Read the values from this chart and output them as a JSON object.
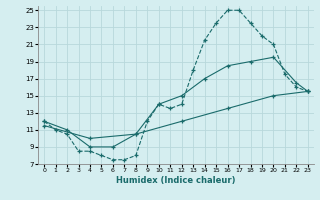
{
  "xlabel": "Humidex (Indice chaleur)",
  "bg_color": "#d5eef0",
  "grid_color": "#b8d8db",
  "line_color": "#1a6b6b",
  "xlim": [
    -0.5,
    23.5
  ],
  "ylim": [
    7,
    25.5
  ],
  "xticks": [
    0,
    1,
    2,
    3,
    4,
    5,
    6,
    7,
    8,
    9,
    10,
    11,
    12,
    13,
    14,
    15,
    16,
    17,
    18,
    19,
    20,
    21,
    22,
    23
  ],
  "yticks": [
    7,
    9,
    11,
    13,
    15,
    17,
    19,
    21,
    23,
    25
  ],
  "line1_x": [
    0,
    1,
    2,
    3,
    4,
    5,
    6,
    7,
    8,
    9,
    10,
    11,
    12,
    13,
    14,
    15,
    16,
    17,
    18,
    19,
    20,
    21,
    22,
    23
  ],
  "line1_y": [
    12,
    11,
    10.5,
    8.5,
    8.5,
    8,
    7.5,
    7.5,
    8,
    12,
    14,
    13.5,
    14,
    18,
    21.5,
    23.5,
    25,
    25,
    23.5,
    22,
    21,
    17.5,
    16,
    15.5
  ],
  "line2_x": [
    0,
    2,
    4,
    6,
    8,
    10,
    12,
    14,
    16,
    18,
    20,
    22,
    23
  ],
  "line2_y": [
    12,
    11,
    9,
    9,
    10.5,
    14,
    15,
    17,
    18.5,
    19,
    19.5,
    16.5,
    15.5
  ],
  "line3_x": [
    0,
    4,
    8,
    12,
    16,
    20,
    23
  ],
  "line3_y": [
    11.5,
    10,
    10.5,
    12,
    13.5,
    15,
    15.5
  ]
}
